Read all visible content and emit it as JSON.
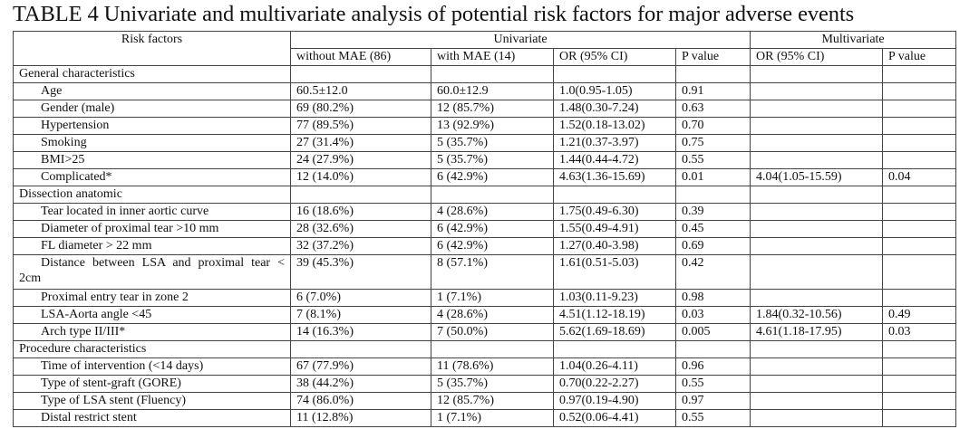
{
  "title": "TABLE 4 Univariate and multivariate analysis of potential risk factors for major adverse events",
  "header": {
    "risk_factors": "Risk factors",
    "univariate": "Univariate",
    "multivariate": "Multivariate",
    "columns": [
      "without MAE (86)",
      "with MAE (14)",
      "OR (95% CI)",
      "P value",
      "OR (95% CI)",
      "P value"
    ]
  },
  "rows": [
    {
      "section": "General characteristics"
    },
    {
      "label": "Age",
      "cells": [
        "60.5±12.0",
        "60.0±12.9",
        "1.0(0.95-1.05)",
        "0.91",
        "",
        ""
      ]
    },
    {
      "label": "Gender (male)",
      "cells": [
        "69 (80.2%)",
        "12 (85.7%)",
        "1.48(0.30-7.24)",
        "0.63",
        "",
        ""
      ]
    },
    {
      "label": "Hypertension",
      "cells": [
        "77 (89.5%)",
        "13 (92.9%)",
        "1.52(0.18-13.02)",
        "0.70",
        "",
        ""
      ]
    },
    {
      "label": "Smoking",
      "cells": [
        "27 (31.4%)",
        "5 (35.7%)",
        "1.21(0.37-3.97)",
        "0.75",
        "",
        ""
      ]
    },
    {
      "label": "BMI>25",
      "cells": [
        "24 (27.9%)",
        "5 (35.7%)",
        "1.44(0.44-4.72)",
        "0.55",
        "",
        ""
      ]
    },
    {
      "label": "Complicated*",
      "cells": [
        "12 (14.0%)",
        "6 (42.9%)",
        "4.63(1.36-15.69)",
        "0.01",
        "4.04(1.05-15.59)",
        "0.04"
      ]
    },
    {
      "section": "Dissection anatomic"
    },
    {
      "label": "Tear located in inner aortic curve",
      "cells": [
        "16 (18.6%)",
        "4 (28.6%)",
        "1.75(0.49-6.30)",
        "0.39",
        "",
        ""
      ]
    },
    {
      "label": "Diameter of proximal tear >10 mm",
      "cells": [
        "28 (32.6%)",
        "6 (42.9%)",
        "1.55(0.49-4.91)",
        "0.45",
        "",
        ""
      ]
    },
    {
      "label": "FL diameter > 22 mm",
      "cells": [
        "32 (37.2%)",
        "6 (42.9%)",
        "1.27(0.40-3.98)",
        "0.69",
        "",
        ""
      ]
    },
    {
      "label": "Distance between LSA and proximal tear < 2cm",
      "wrap": true,
      "cells": [
        "39 (45.3%)",
        "8 (57.1%)",
        "1.61(0.51-5.03)",
        "0.42",
        "",
        ""
      ]
    },
    {
      "label": "Proximal entry tear in zone 2",
      "cells": [
        "6 (7.0%)",
        "1 (7.1%)",
        "1.03(0.11-9.23)",
        "0.98",
        "",
        ""
      ]
    },
    {
      "label": "LSA-Aorta angle <45",
      "cells": [
        "7 (8.1%)",
        "4 (28.6%)",
        "4.51(1.12-18.19)",
        "0.03",
        "1.84(0.32-10.56)",
        "0.49"
      ]
    },
    {
      "label": "Arch type II/III*",
      "cells": [
        "14 (16.3%)",
        "7 (50.0%)",
        "5.62(1.69-18.69)",
        "0.005",
        "4.61(1.18-17.95)",
        "0.03"
      ]
    },
    {
      "section": "Procedure characteristics"
    },
    {
      "label": "Time of intervention (<14 days)",
      "cells": [
        "67 (77.9%)",
        "11 (78.6%)",
        "1.04(0.26-4.11)",
        "0.96",
        "",
        ""
      ]
    },
    {
      "label": "Type of stent-graft (GORE)",
      "cells": [
        "38 (44.2%)",
        "5 (35.7%)",
        "0.70(0.22-2.27)",
        "0.55",
        "",
        ""
      ]
    },
    {
      "label": "Type of LSA stent (Fluency)",
      "cells": [
        "74 (86.0%)",
        "12 (85.7%)",
        "0.97(0.19-4.90)",
        "0.97",
        "",
        ""
      ]
    },
    {
      "label": "Distal restrict stent",
      "cells": [
        "11 (12.8%)",
        "1 (7.1%)",
        "0.52(0.06-4.41)",
        "0.55",
        "",
        ""
      ]
    }
  ]
}
